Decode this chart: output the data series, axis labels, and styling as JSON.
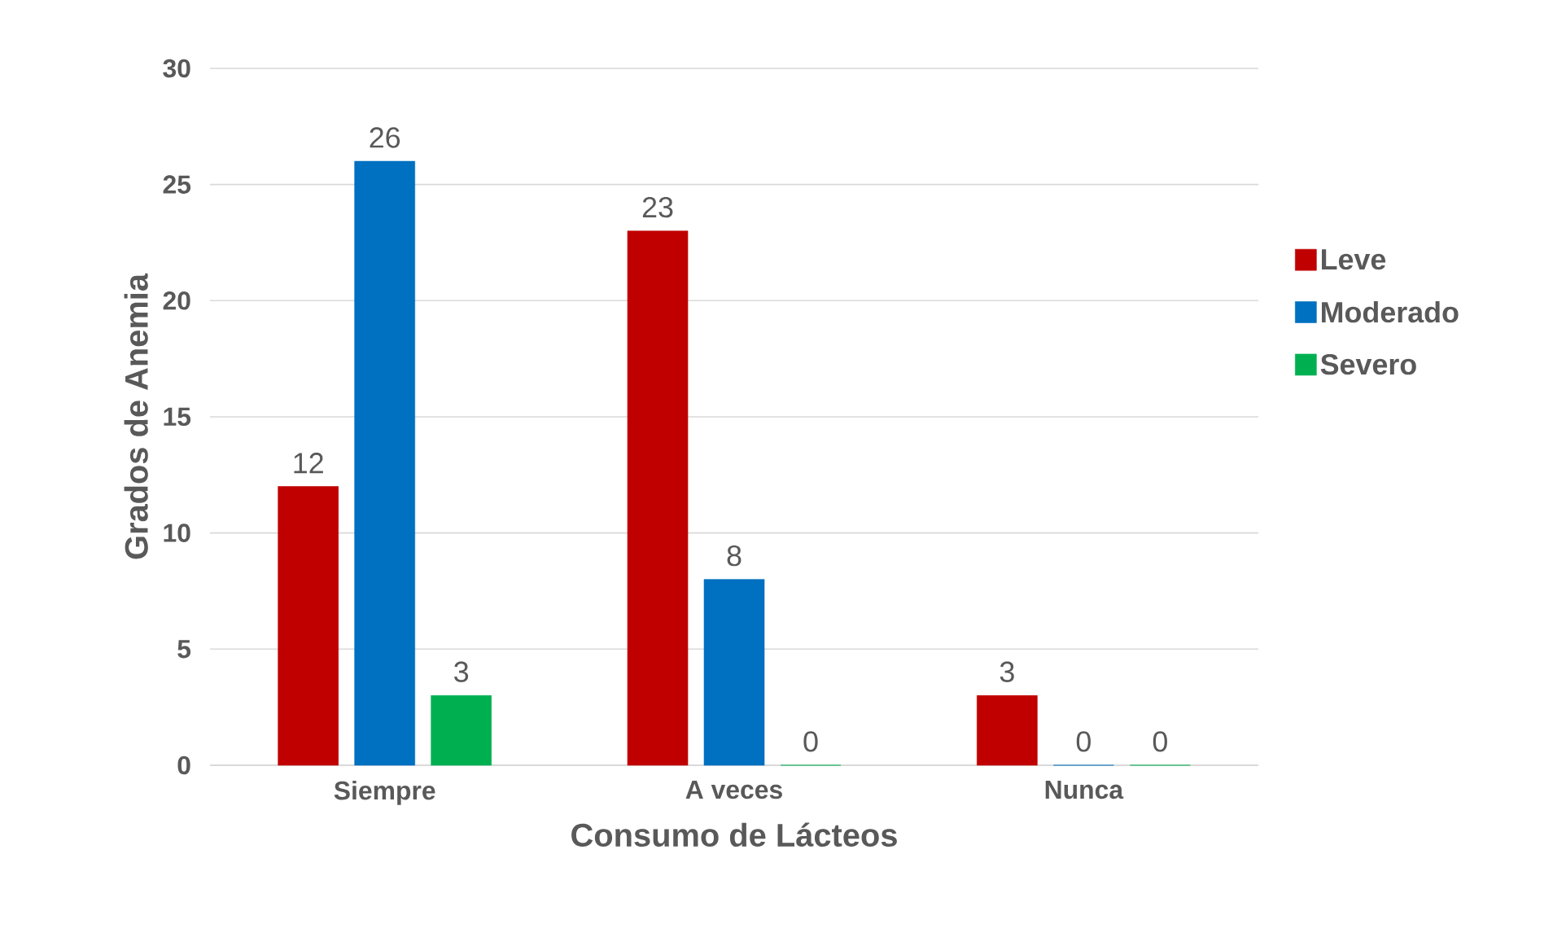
{
  "chart_data": {
    "type": "bar",
    "xlabel": "Consumo de Lácteos",
    "ylabel": "Grados de Anemia",
    "categories": [
      "Siempre",
      "A veces",
      "Nunca"
    ],
    "series": [
      {
        "name": "Leve",
        "color": "#c00000",
        "values": [
          12,
          23,
          3
        ]
      },
      {
        "name": "Moderado",
        "color": "#0070c0",
        "values": [
          26,
          8,
          0
        ]
      },
      {
        "name": "Severo",
        "color": "#00b050",
        "values": [
          3,
          0,
          0
        ]
      }
    ],
    "ylim": [
      0,
      30
    ],
    "yticks": [
      0,
      5,
      10,
      15,
      20,
      25,
      30
    ],
    "grid": "y",
    "legend": "right",
    "data_labels": true
  }
}
